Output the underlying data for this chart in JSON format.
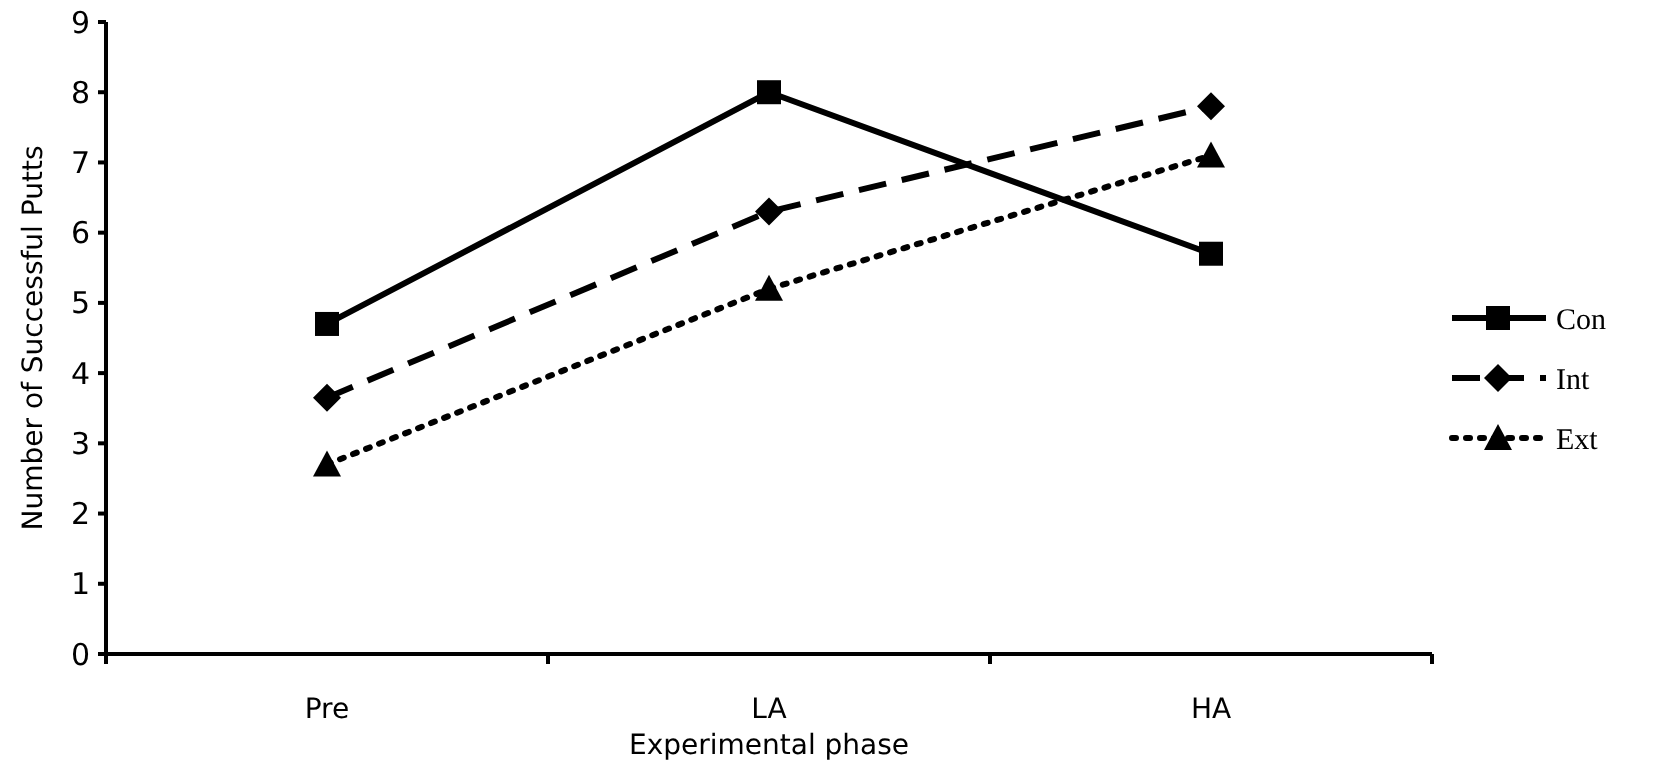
{
  "chart_data": {
    "type": "line",
    "xlabel": "Experimental phase",
    "ylabel": "Number of Successful Putts",
    "categories": [
      "Pre",
      "LA",
      "HA"
    ],
    "series": [
      {
        "name": "Con",
        "color": "#000000",
        "values": [
          4.7,
          8.0,
          5.7
        ],
        "marker": "square",
        "line_style": "solid"
      },
      {
        "name": "Int",
        "color": "#000000",
        "values": [
          3.65,
          6.3,
          7.8
        ],
        "marker": "diamond",
        "line_style": "dashed"
      },
      {
        "name": "Ext",
        "color": "#000000",
        "values": [
          2.7,
          5.2,
          7.1
        ],
        "marker": "triangle",
        "line_style": "dotted"
      }
    ],
    "ylim": [
      0,
      9
    ],
    "yticks": [
      0,
      1,
      2,
      3,
      4,
      5,
      6,
      7,
      8,
      9
    ],
    "grid": false,
    "legend": "right"
  }
}
